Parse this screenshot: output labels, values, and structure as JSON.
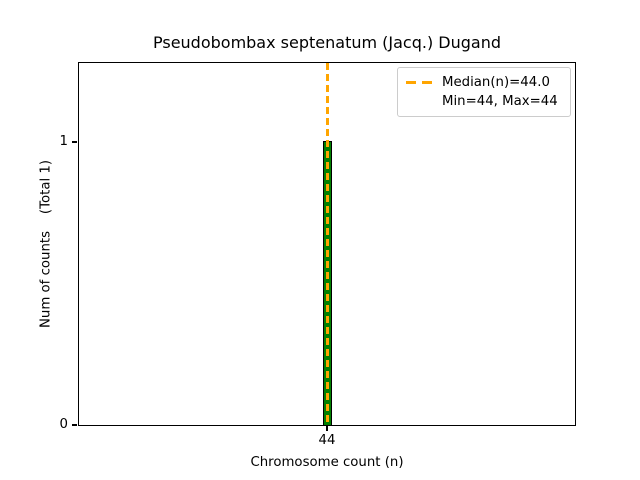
{
  "chart_data": {
    "type": "bar",
    "title": "Pseudobombax septenatum (Jacq.) Dugand",
    "xlabel": "Chromosome count (n)",
    "ylabel": "Num of counts    (Total 1)",
    "categories": [
      44
    ],
    "values": [
      1
    ],
    "total_counts": 1,
    "x_tick_labels": [
      "44"
    ],
    "y_tick_labels": [
      "0",
      "1"
    ],
    "ylim": [
      0,
      1.28
    ],
    "median": 44.0,
    "min": 44,
    "max": 44,
    "grid": false,
    "legend": {
      "position": "upper-right",
      "entries": [
        "Median(n)=44.0",
        "Min=44, Max=44"
      ]
    },
    "colors": {
      "bar_fill": "#008000",
      "bar_edge": "#000000",
      "median_line": "#FFA500",
      "legend_border": "#cccccc",
      "text": "#000000",
      "background": "#ffffff"
    }
  }
}
